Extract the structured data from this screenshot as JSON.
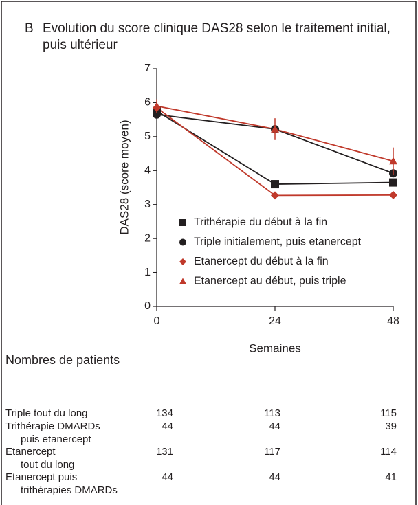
{
  "chart_data": {
    "type": "line",
    "panel": "B",
    "title": "Evolution du score clinique DAS28 selon le traitement initial, puis ultérieur",
    "x_label": "Semaines",
    "y_label": "DAS28 (score moyen)",
    "x": [
      0,
      24,
      48
    ],
    "xlim": [
      0,
      48
    ],
    "xticks": [
      0,
      24,
      48
    ],
    "ylim": [
      0,
      7
    ],
    "yticks": [
      0,
      1,
      2,
      3,
      4,
      5,
      6,
      7
    ],
    "series": [
      {
        "name": "Trithérapie du début à la fin",
        "color": "#231f20",
        "marker": "square",
        "values": [
          5.75,
          3.6,
          3.65
        ],
        "errors": [
          null,
          null,
          null
        ]
      },
      {
        "name": "Triple  initialement, puis etanercept",
        "color": "#231f20",
        "marker": "circle",
        "values": [
          5.65,
          5.22,
          3.92
        ],
        "errors": [
          null,
          null,
          null
        ]
      },
      {
        "name": "Etanercept du début à la fin",
        "color": "#c0392b",
        "marker": "diamond",
        "values": [
          5.85,
          3.27,
          3.28
        ],
        "errors": [
          null,
          null,
          null
        ]
      },
      {
        "name": "Etanercept au début, puis triple",
        "color": "#c0392b",
        "marker": "triangle",
        "values": [
          5.9,
          5.22,
          4.28
        ],
        "errors": [
          0.2,
          0.32,
          0.4
        ]
      }
    ],
    "table": {
      "title": "Nombres de patients",
      "rows": [
        {
          "label": [
            "Triple tout du long"
          ],
          "counts": [
            134,
            113,
            115
          ]
        },
        {
          "label": [
            "Trithérapie DMARDs",
            "puis etanercept"
          ],
          "counts": [
            44,
            44,
            39
          ]
        },
        {
          "label": [
            "Etanercept",
            "tout du long"
          ],
          "counts": [
            131,
            117,
            114
          ]
        },
        {
          "label": [
            "Etanercept puis",
            "trithérapies DMARDs"
          ],
          "counts": [
            44,
            44,
            41
          ]
        }
      ]
    }
  }
}
